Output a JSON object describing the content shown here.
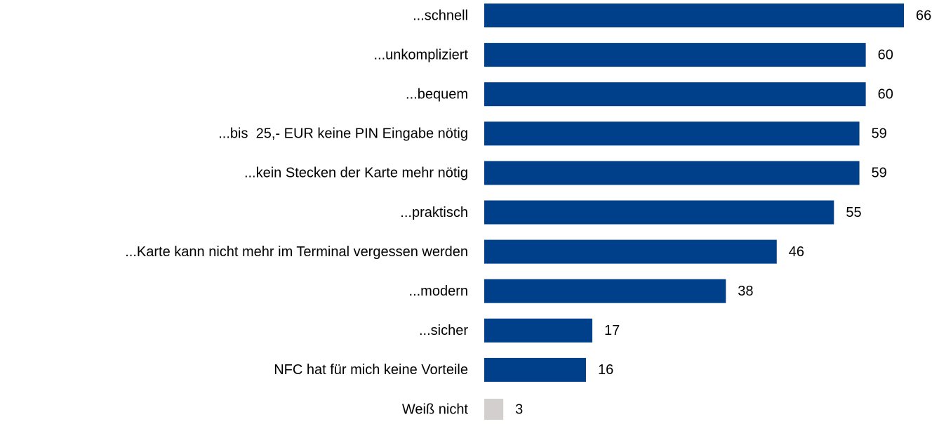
{
  "chart_data": {
    "type": "bar",
    "orientation": "horizontal",
    "categories": [
      "...schnell",
      "...unkompliziert",
      "...bequem",
      "...bis  25,- EUR keine PIN Eingabe nötig",
      "...kein Stecken der Karte mehr nötig",
      "...praktisch",
      "...Karte kann nicht mehr im Terminal vergessen werden",
      "...modern",
      "...sicher",
      "NFC hat für mich keine Vorteile",
      "Weiß nicht"
    ],
    "values": [
      66,
      60,
      60,
      59,
      59,
      55,
      46,
      38,
      17,
      16,
      3
    ],
    "colors": [
      "#00408a",
      "#00408a",
      "#00408a",
      "#00408a",
      "#00408a",
      "#00408a",
      "#00408a",
      "#00408a",
      "#00408a",
      "#00408a",
      "#d4cfcf"
    ]
  }
}
